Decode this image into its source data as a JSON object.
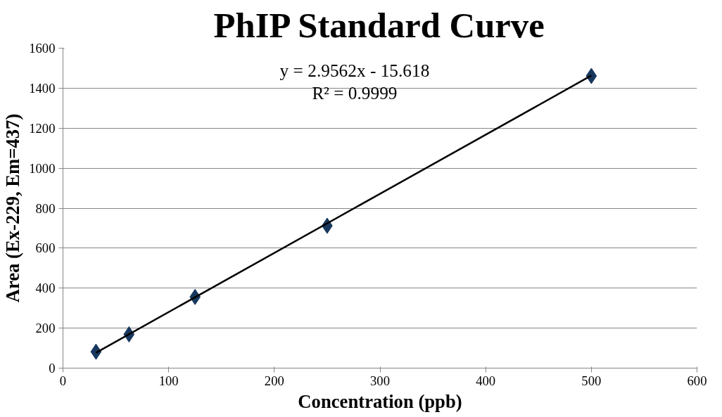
{
  "chart_data": {
    "type": "scatter",
    "title": "PhIP Standard Curve",
    "xlabel": "Concentration (ppb)",
    "ylabel": "Area (Ex-229, Em=437)",
    "series": [
      {
        "color": "#17375e",
        "x": [
          31.25,
          62.5,
          125,
          250,
          500
        ],
        "values": [
          82,
          169,
          356,
          712,
          1461
        ],
        "marker": "diamond"
      },
      {
        "type": "line",
        "color": "#000000",
        "x": [
          31.25,
          500
        ],
        "values": [
          77,
          1463
        ],
        "line_style": "solid"
      }
    ],
    "annotations": [
      "y = 2.9562x - 15.618",
      "R² = 0.9999"
    ],
    "xlim": [
      0,
      600
    ],
    "xticks": [
      0,
      100,
      200,
      300,
      400,
      500,
      600
    ],
    "ylim": [
      0,
      1600
    ],
    "yticks": [
      0,
      200,
      400,
      600,
      800,
      1000,
      1200,
      1400,
      1600
    ],
    "grid": "y"
  }
}
